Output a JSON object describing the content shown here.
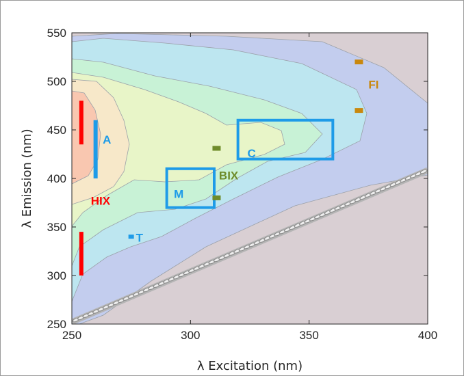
{
  "chart_data": {
    "type": "heatmap",
    "title": "",
    "xlabel": "λ Excitation (nm)",
    "ylabel": "λ Emission (nm)",
    "xlim": [
      250,
      400
    ],
    "ylim": [
      250,
      550
    ],
    "x_ticks": [
      250,
      300,
      350,
      400
    ],
    "y_ticks": [
      250,
      300,
      350,
      400,
      450,
      500,
      550
    ],
    "grid": false,
    "contour_colors": [
      "#d9cfd3",
      "#c3cdee",
      "#bde6f0",
      "#c8f2d6",
      "#e8f5c8",
      "#f7e8c9",
      "#f9c7b0"
    ],
    "annotations": [
      {
        "label": "A",
        "kind": "line",
        "x": 260,
        "y_range": [
          400,
          460
        ],
        "color": "#1e9be8",
        "label_pos": [
          263,
          440
        ]
      },
      {
        "label": "HIX",
        "kind": "line",
        "x": 254,
        "y_range": [
          435,
          480
        ],
        "color": "#ff0000",
        "label_pos": [
          258,
          377
        ]
      },
      {
        "label": "",
        "kind": "line",
        "x": 254,
        "y_range": [
          300,
          345
        ],
        "color": "#ff0000"
      },
      {
        "label": "T",
        "kind": "point",
        "x": 275,
        "y": 340,
        "color": "#1e9be8",
        "label_pos": [
          277,
          339
        ]
      },
      {
        "label": "M",
        "kind": "box",
        "x_range": [
          290,
          310
        ],
        "y_range": [
          370,
          410
        ],
        "color": "#1e9be8",
        "label_pos": [
          293,
          384
        ]
      },
      {
        "label": "C",
        "kind": "box",
        "x_range": [
          320,
          360
        ],
        "y_range": [
          420,
          460
        ],
        "color": "#1e9be8",
        "label_pos": [
          324,
          426
        ]
      },
      {
        "label": "BIX",
        "kind": "point_pair",
        "x": 311,
        "y": [
          380,
          431
        ],
        "color": "#6e8b2a",
        "label_pos": [
          312,
          403
        ]
      },
      {
        "label": "FI",
        "kind": "point_pair",
        "x": 371,
        "y": [
          470,
          520
        ],
        "color": "#c9880e",
        "label_pos": [
          375,
          497
        ]
      }
    ]
  }
}
